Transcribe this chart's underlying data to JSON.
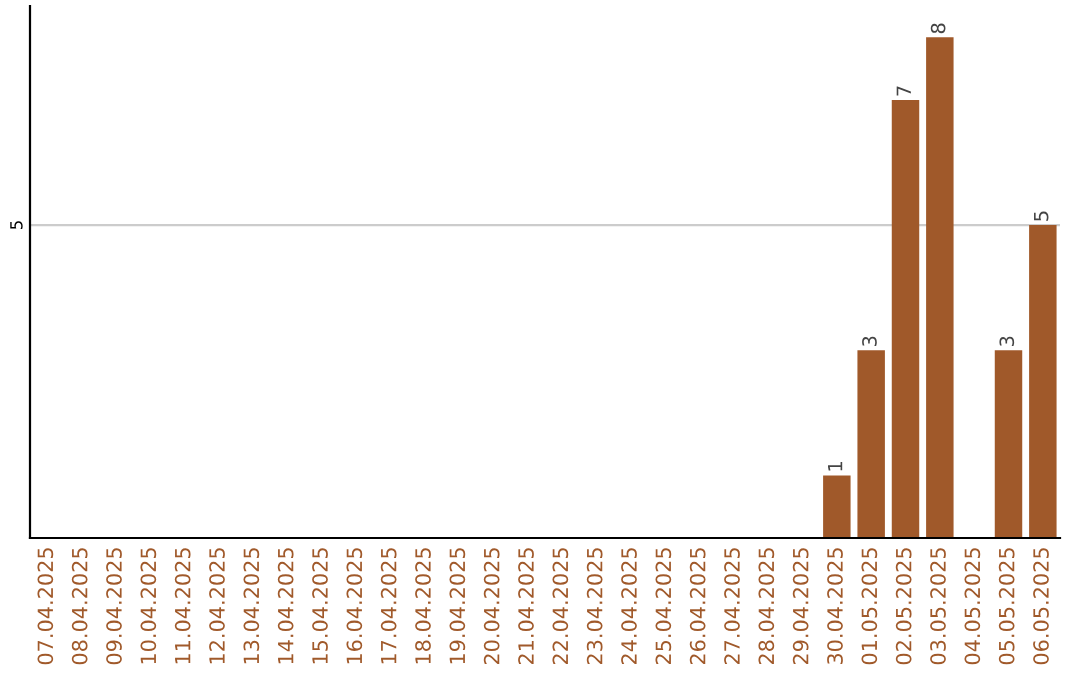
{
  "chart_data": {
    "type": "bar",
    "categories": [
      "07.04.2025",
      "08.04.2025",
      "09.04.2025",
      "10.04.2025",
      "11.04.2025",
      "12.04.2025",
      "13.04.2025",
      "14.04.2025",
      "15.04.2025",
      "16.04.2025",
      "17.04.2025",
      "18.04.2025",
      "19.04.2025",
      "20.04.2025",
      "21.04.2025",
      "22.04.2025",
      "23.04.2025",
      "24.04.2025",
      "25.04.2025",
      "26.04.2025",
      "27.04.2025",
      "28.04.2025",
      "29.04.2025",
      "30.04.2025",
      "01.05.2025",
      "02.05.2025",
      "03.05.2025",
      "04.05.2025",
      "05.05.2025",
      "06.05.2025"
    ],
    "values": [
      null,
      null,
      null,
      null,
      null,
      null,
      null,
      null,
      null,
      null,
      null,
      null,
      null,
      null,
      null,
      null,
      null,
      null,
      null,
      null,
      null,
      null,
      null,
      1,
      3,
      7,
      8,
      null,
      3,
      5
    ],
    "data_labels": true,
    "color": "#a0592a",
    "ref_lines": [
      {
        "axis": "y",
        "value": 5,
        "label": "5",
        "color": "#cccccc"
      }
    ]
  }
}
